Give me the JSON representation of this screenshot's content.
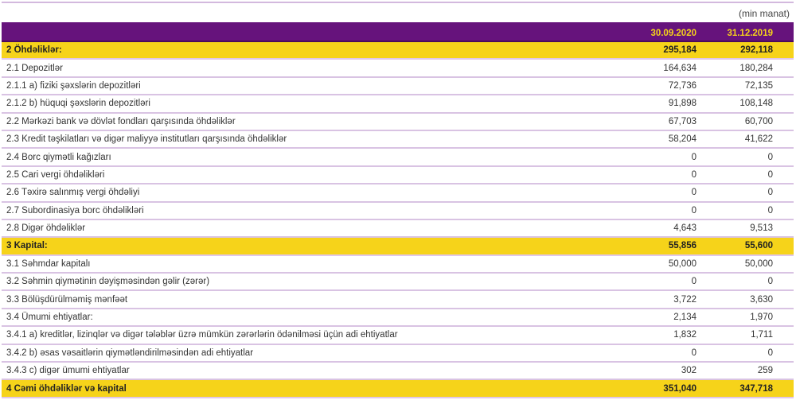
{
  "unit": "(min manat)",
  "columns": [
    "30.09.2020",
    "31.12.2019"
  ],
  "rows": [
    {
      "label": "2 Öhdəliklər:",
      "v1": "295,184",
      "v2": "292,118",
      "highlight": true
    },
    {
      "label": "2.1 Depozitlər",
      "v1": "164,634",
      "v2": "180,284"
    },
    {
      "label": "2.1.1 a) fiziki şəxslərin depozitləri",
      "v1": "72,736",
      "v2": "72,135"
    },
    {
      "label": "2.1.2 b) hüquqi şəxslərin depozitləri",
      "v1": "91,898",
      "v2": "108,148"
    },
    {
      "label": "2.2 Mərkəzi bank və dövlət fondları qarşısında öhdəliklər",
      "v1": "67,703",
      "v2": "60,700"
    },
    {
      "label": "2.3 Kredit təşkilatları və digər maliyyə institutları qarşısında öhdəliklər",
      "v1": "58,204",
      "v2": "41,622"
    },
    {
      "label": "2.4 Borc qiymətli kağızları",
      "v1": "0",
      "v2": "0"
    },
    {
      "label": "2.5 Cari vergi öhdəlikləri",
      "v1": "0",
      "v2": "0"
    },
    {
      "label": "2.6 Təxirə salınmış vergi öhdəliyi",
      "v1": "0",
      "v2": "0"
    },
    {
      "label": "2.7 Subordinasiya borc öhdəlikləri",
      "v1": "0",
      "v2": "0"
    },
    {
      "label": "2.8 Digər öhdəliklər",
      "v1": "4,643",
      "v2": "9,513"
    },
    {
      "label": "3 Kapital:",
      "v1": "55,856",
      "v2": "55,600",
      "highlight": true
    },
    {
      "label": "3.1 Səhmdar kapitalı",
      "v1": "50,000",
      "v2": "50,000"
    },
    {
      "label": "3.2 Səhmin qiymətinin dəyişməsindən gəlir (zərər)",
      "v1": "0",
      "v2": "0"
    },
    {
      "label": "3.3 Bölüşdürülməmiş mənfəət",
      "v1": "3,722",
      "v2": "3,630"
    },
    {
      "label": "3.4 Ümumi ehtiyatlar:",
      "v1": "2,134",
      "v2": "1,970"
    },
    {
      "label": "3.4.1 a) kreditlər, lizinqlər və digər tələblər üzrə mümkün zərərlərin ödənilməsi üçün adi ehtiyatlar",
      "v1": "1,832",
      "v2": "1,711"
    },
    {
      "label": "3.4.2 b) əsas vəsaitlərin qiymətləndirilməsindən adi ehtiyatlar",
      "v1": "0",
      "v2": "0"
    },
    {
      "label": "3.4.3 c) digər ümumi ehtiyatlar",
      "v1": "302",
      "v2": "259"
    },
    {
      "label": "4 Cəmi öhdəliklər və kapital",
      "v1": "351,040",
      "v2": "347,718",
      "highlight": true
    }
  ],
  "colors": {
    "header": "#66137c",
    "highlight": "#f6d31a",
    "header_text": "#f5d21a",
    "row_line": "#d9c3e3"
  }
}
